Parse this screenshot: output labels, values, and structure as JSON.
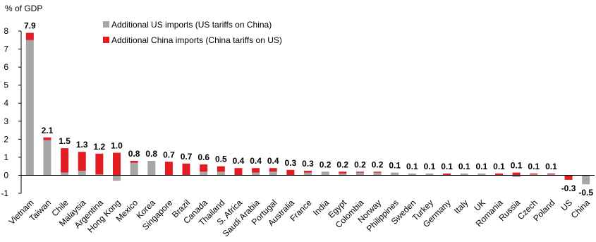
{
  "chart_data": {
    "type": "bar",
    "stacked": true,
    "ylabel": "% of GDP",
    "ylim": [
      -1,
      8
    ],
    "yticks": [
      -1,
      0,
      1,
      2,
      3,
      4,
      5,
      6,
      7,
      8
    ],
    "legend_position": "top-left",
    "categories": [
      "Vietnam",
      "Taiwan",
      "Chile",
      "Malaysia",
      "Argentina",
      "Hong Kong",
      "Mexico",
      "Korea",
      "Singapore",
      "Brazil",
      "Canada",
      "Thailand",
      "S. Africa",
      "Saudi Arabia",
      "Portugal",
      "Australia",
      "France",
      "India",
      "Egypt",
      "Colombia",
      "Norway",
      "Philippines",
      "Sweden",
      "Turkey",
      "Germany",
      "Italy",
      "UK",
      "Romania",
      "Russia",
      "Czech",
      "Poland",
      "US",
      "China"
    ],
    "series": [
      {
        "name": "Additional US imports (US tariffs on China)",
        "color": "#a6a6a6",
        "values": [
          7.5,
          1.95,
          0.15,
          0.25,
          0.05,
          -0.3,
          0.7,
          0.8,
          0.0,
          0.0,
          0.2,
          0.2,
          0.0,
          0.15,
          0.2,
          0.0,
          0.15,
          0.2,
          0.1,
          0.15,
          0.15,
          0.15,
          0.1,
          0.1,
          0.0,
          0.1,
          0.1,
          0.0,
          -0.1,
          0.05,
          0.05,
          0.0,
          -0.5
        ]
      },
      {
        "name": "Additional China imports (China tariffs on US)",
        "color": "#e31b23",
        "values": [
          0.4,
          0.15,
          1.35,
          1.05,
          1.15,
          1.25,
          0.1,
          0.0,
          0.75,
          0.65,
          0.4,
          0.3,
          0.4,
          0.25,
          0.2,
          0.3,
          0.1,
          0.0,
          0.1,
          0.05,
          0.05,
          0.0,
          0.0,
          0.0,
          0.1,
          0.0,
          0.0,
          0.1,
          0.15,
          0.05,
          0.05,
          -0.25,
          0.0
        ]
      }
    ],
    "totals": [
      "7.9",
      "2.1",
      "1.5",
      "1.3",
      "1.2",
      "1.0",
      "0.8",
      "0.8",
      "0.7",
      "0.7",
      "0.6",
      "0.5",
      "0.4",
      "0.4",
      "0.4",
      "0.3",
      "0.3",
      "0.2",
      "0.2",
      "0.2",
      "0.2",
      "0.1",
      "0.1",
      "0.1",
      "0.1",
      "0.1",
      "0.1",
      "0.1",
      "0.1",
      "0.1",
      "0.1",
      "-0.3",
      "-0.5"
    ]
  }
}
